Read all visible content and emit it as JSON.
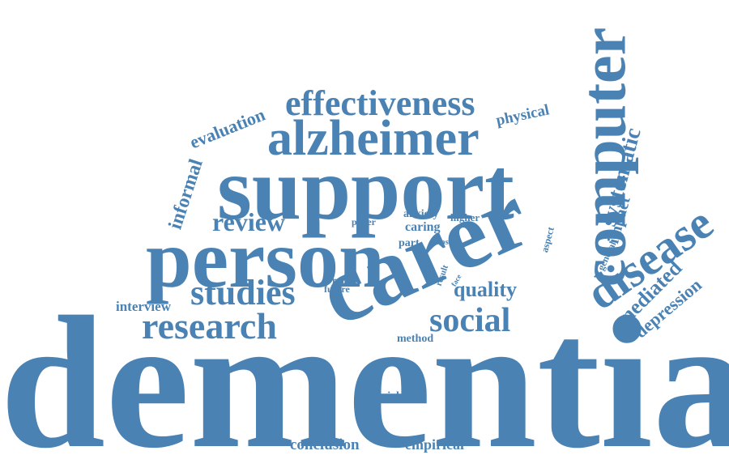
{
  "color": "#4a82b4",
  "words": [
    "dementia",
    "carer",
    "support",
    "person",
    "computer",
    "alzheimer",
    "disease",
    "effectiveness",
    "research",
    "studies",
    "social",
    "review",
    "systematic",
    "mediated",
    "depression",
    "quality",
    "evaluation",
    "informal",
    "impact",
    "physical",
    "interview",
    "anxiety",
    "caring",
    "higher",
    "paper",
    "part",
    "most",
    "range",
    "future",
    "result",
    "face",
    "aspect",
    "general",
    "method",
    "variable",
    "conclusion",
    "empirical"
  ]
}
